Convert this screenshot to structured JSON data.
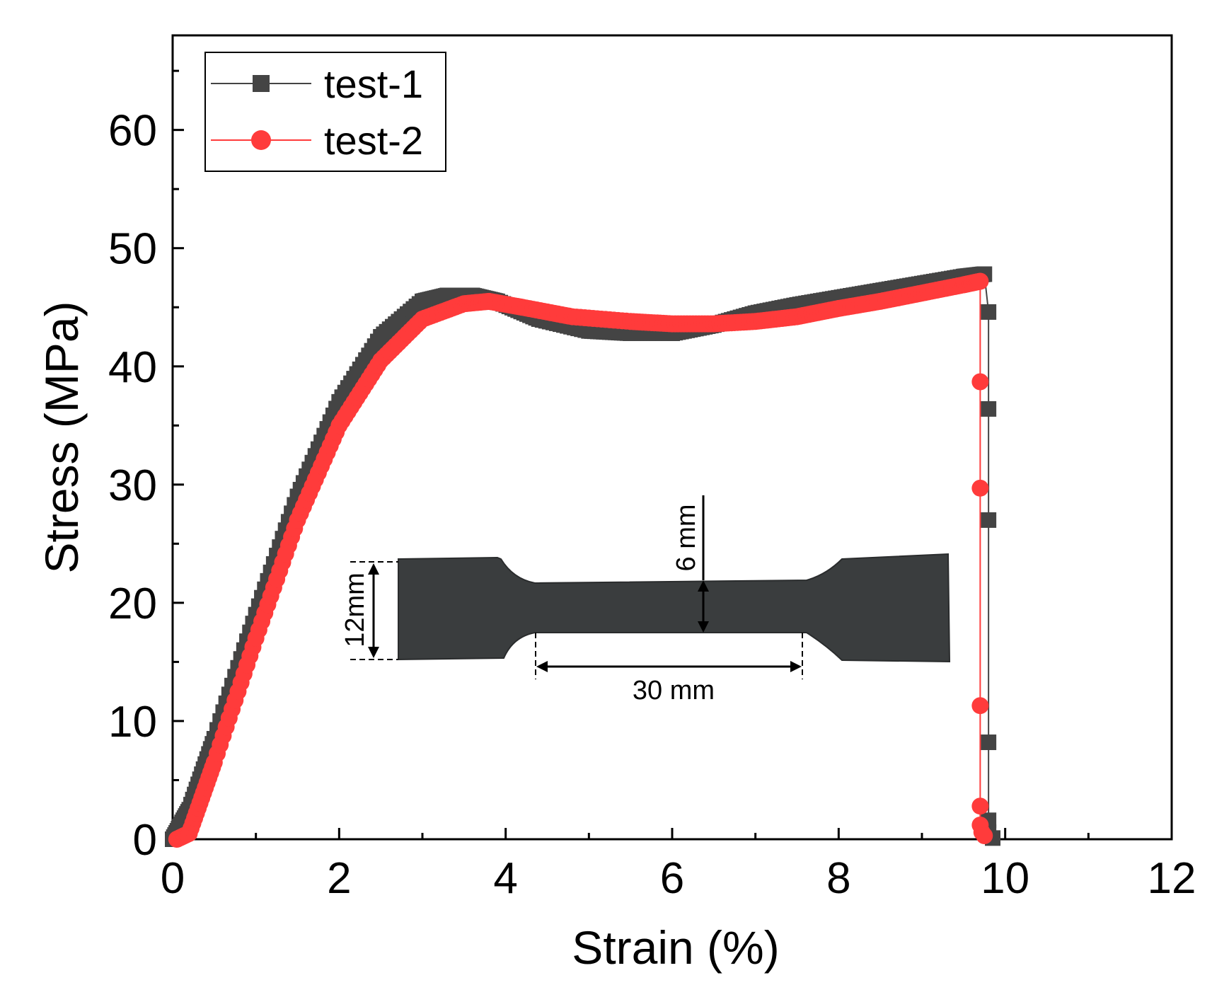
{
  "chart_data": {
    "type": "scatter",
    "xlabel": "Strain (%)",
    "ylabel": "Stress (MPa)",
    "xlim": [
      0,
      12
    ],
    "ylim": [
      0,
      68
    ],
    "xticks": [
      0,
      2,
      4,
      6,
      8,
      10,
      12
    ],
    "yticks": [
      0,
      10,
      20,
      30,
      40,
      50,
      60
    ],
    "grid": false,
    "legend_position": "top-left",
    "series": [
      {
        "name": "test-1",
        "color": "#444444",
        "marker": "square",
        "x": [
          0,
          0.2,
          0.5,
          1.0,
          1.5,
          2.0,
          2.5,
          3.0,
          3.3,
          3.6,
          3.9,
          4.4,
          5.0,
          5.5,
          6.0,
          6.5,
          7.0,
          7.5,
          8.0,
          8.5,
          9.0,
          9.5,
          9.75,
          9.8,
          9.8,
          9.8,
          9.8,
          9.8,
          9.8,
          9.85
        ],
        "y": [
          0,
          2.5,
          8.5,
          19.0,
          29.0,
          37.0,
          42.5,
          45.5,
          46.0,
          46.0,
          45.5,
          44.0,
          43.0,
          42.8,
          42.8,
          43.5,
          44.5,
          45.2,
          45.8,
          46.4,
          47.0,
          47.6,
          47.8,
          44.6,
          36.4,
          27.0,
          8.2,
          1.6,
          0.6,
          0.1
        ]
      },
      {
        "name": "test-2",
        "color": "#ff3b3b",
        "marker": "circle",
        "x": [
          0.05,
          0.2,
          0.5,
          1.0,
          1.5,
          2.0,
          2.5,
          3.0,
          3.5,
          3.8,
          4.2,
          4.8,
          5.5,
          6.0,
          6.5,
          7.0,
          7.5,
          8.0,
          8.5,
          9.0,
          9.5,
          9.7,
          9.7,
          9.7,
          9.7,
          9.7,
          9.7,
          9.72,
          9.75
        ],
        "y": [
          0,
          0.5,
          6.5,
          17.0,
          27.0,
          35.0,
          40.5,
          44.0,
          45.3,
          45.5,
          45.0,
          44.2,
          43.8,
          43.6,
          43.6,
          43.8,
          44.2,
          44.9,
          45.5,
          46.2,
          46.9,
          47.2,
          38.7,
          29.7,
          11.3,
          2.8,
          1.2,
          0.6,
          0.3
        ]
      }
    ],
    "inset": {
      "description_labels": [
        "6 mm",
        "12mm",
        "30 mm"
      ]
    }
  }
}
